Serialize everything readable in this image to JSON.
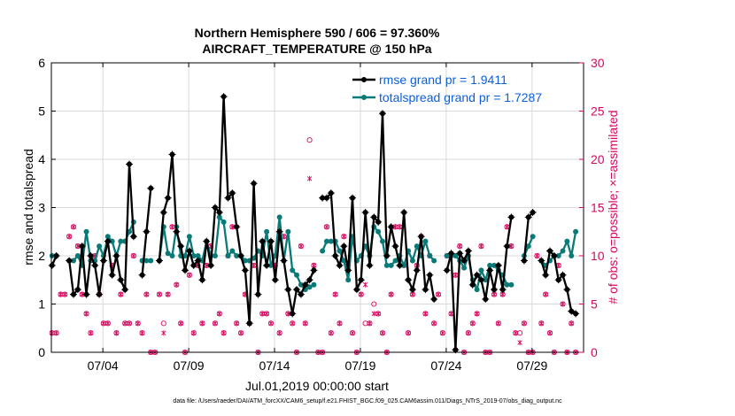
{
  "chart_data": {
    "type": "line",
    "title": "Northern Hemisphere 590 / 606 = 97.360%",
    "subtitle": "AIRCRAFT_TEMPERATURE @ 150 hPa",
    "xlabel": "Jul.01,2019 00:00:00 start",
    "ylabel": "rmse and totalspread",
    "y2label": "# of obs: o=possible; ×=assimilated",
    "footnote": "data file: /Users/raeder/DAI/ATM_forcXX/CAM6_setup/f.e21.FHIST_BGC.f09_025.CAM6assim.011/Diags_NTrS_2019-07/obs_diag_output.nc",
    "xlim": [
      1.0,
      32.0
    ],
    "xticks": [
      4,
      9,
      14,
      19,
      24,
      29
    ],
    "xticklabels": [
      "07/04",
      "07/09",
      "07/14",
      "07/19",
      "07/24",
      "07/29"
    ],
    "ylim": [
      0,
      6
    ],
    "yticks": [
      0,
      1,
      2,
      3,
      4,
      5,
      6
    ],
    "y2lim": [
      0,
      30
    ],
    "y2ticks": [
      0,
      5,
      10,
      15,
      20,
      25,
      30
    ],
    "legend": {
      "position": "top-right",
      "entries": [
        "rmse grand pr = 1.9411",
        "totalspread grand pr = 1.7287"
      ]
    },
    "colors": {
      "rmse": "#000000",
      "spread": "#0a7a78",
      "obs": "#d6095f",
      "legend_text": "#0b5fdc"
    },
    "series": [
      {
        "name": "rmse",
        "x": [
          1.04,
          1.29,
          1.54,
          2.04,
          2.29,
          2.54,
          2.79,
          3.04,
          3.29,
          3.54,
          3.79,
          4.04,
          4.29,
          4.54,
          4.79,
          5.04,
          5.29,
          5.54,
          5.79,
          6.04,
          6.29,
          6.54,
          6.79,
          7.04,
          7.29,
          7.54,
          7.79,
          8.04,
          8.29,
          8.54,
          8.79,
          9.04,
          9.29,
          9.54,
          9.79,
          10.04,
          10.29,
          10.54,
          10.79,
          11.04,
          11.29,
          11.54,
          11.79,
          12.04,
          12.29,
          12.54,
          12.79,
          13.04,
          13.29,
          13.54,
          13.79,
          14.04,
          14.29,
          14.54,
          14.79,
          15.04,
          15.29,
          15.54,
          15.79,
          16.04,
          16.29,
          16.54,
          16.79,
          17.04,
          17.29,
          17.54,
          17.79,
          18.04,
          18.29,
          18.54,
          18.79,
          19.04,
          19.29,
          19.54,
          19.79,
          20.04,
          20.29,
          20.54,
          20.79,
          21.04,
          21.29,
          21.54,
          21.79,
          22.04,
          22.29,
          22.54,
          22.79,
          23.04,
          23.29,
          23.54,
          23.79,
          24.04,
          24.29,
          24.54,
          24.79,
          25.04,
          25.29,
          25.54,
          25.79,
          26.04,
          26.29,
          26.54,
          26.79,
          27.04,
          27.29,
          27.54,
          27.79,
          28.04,
          28.29,
          28.54,
          28.79,
          29.04,
          29.29,
          29.54,
          29.79,
          30.04,
          30.29,
          30.54,
          30.79,
          31.04,
          31.29,
          31.54
        ],
        "values": [
          1.8,
          2.0,
          null,
          1.9,
          1.2,
          1.3,
          2.2,
          1.2,
          2.0,
          1.8,
          1.2,
          1.9,
          2.3,
          1.6,
          2.0,
          1.5,
          1.3,
          3.9,
          2.4,
          null,
          1.6,
          2.5,
          3.4,
          null,
          1.9,
          2.9,
          3.2,
          4.1,
          2.5,
          2.2,
          1.7,
          2.1,
          1.8,
          1.9,
          1.5,
          2.3,
          1.8,
          3.0,
          2.9,
          5.3,
          3.2,
          3.3,
          2.6,
          2.0,
          1.7,
          0.6,
          3.5,
          1.2,
          2.3,
          1.8,
          2.3,
          1.5,
          2.5,
          1.9,
          1.3,
          0.8,
          1.3,
          1.2,
          1.4,
          1.5,
          1.7,
          null,
          3.2,
          3.2,
          3.3,
          2.0,
          1.8,
          2.2,
          1.7,
          3.2,
          1.3,
          1.5,
          2.9,
          1.8,
          2.8,
          2.7,
          4.95,
          2.0,
          2.6,
          2.2,
          1.8,
          2.9,
          1.5,
          1.3,
          1.7,
          2.4,
          1.3,
          1.6,
          1.1,
          null,
          null,
          1.7,
          2.05,
          0.05,
          2.05,
          1.9,
          2.1,
          1.4,
          1.6,
          1.5,
          1.1,
          1.7,
          1.3,
          1.8,
          1.3,
          2.2,
          2.8,
          null,
          null,
          1.9,
          2.8,
          2.9,
          null,
          1.9,
          1.6,
          2.1,
          2.0,
          1.5,
          1.6,
          1.3,
          0.85,
          0.8
        ]
      },
      {
        "name": "totalspread",
        "x": [
          1.04,
          1.29,
          1.54,
          2.04,
          2.29,
          2.54,
          2.79,
          3.04,
          3.29,
          3.54,
          3.79,
          4.04,
          4.29,
          4.54,
          4.79,
          5.04,
          5.29,
          5.54,
          5.79,
          6.04,
          6.29,
          6.54,
          6.79,
          7.04,
          7.29,
          7.54,
          7.79,
          8.04,
          8.29,
          8.54,
          8.79,
          9.04,
          9.29,
          9.54,
          9.79,
          10.04,
          10.29,
          10.54,
          10.79,
          11.04,
          11.29,
          11.54,
          11.79,
          12.04,
          12.29,
          12.54,
          12.79,
          13.04,
          13.29,
          13.54,
          13.79,
          14.04,
          14.29,
          14.54,
          14.79,
          15.04,
          15.29,
          15.54,
          15.79,
          16.04,
          16.29,
          16.54,
          16.79,
          17.04,
          17.29,
          17.54,
          17.79,
          18.04,
          18.29,
          18.54,
          18.79,
          19.04,
          19.29,
          19.54,
          19.79,
          20.04,
          20.29,
          20.54,
          20.79,
          21.04,
          21.29,
          21.54,
          21.79,
          22.04,
          22.29,
          22.54,
          22.79,
          23.04,
          23.29,
          23.54,
          23.79,
          24.04,
          24.29,
          24.54,
          24.79,
          25.04,
          25.29,
          25.54,
          25.79,
          26.04,
          26.29,
          26.54,
          26.79,
          27.04,
          27.29,
          27.54,
          27.79,
          28.04,
          28.29,
          28.54,
          28.79,
          29.04,
          29.29,
          29.54,
          29.79,
          30.04,
          30.29,
          30.54,
          30.79,
          31.04,
          31.29,
          31.54
        ],
        "values": [
          2.0,
          2.0,
          null,
          1.9,
          1.9,
          2.0,
          1.8,
          2.5,
          1.9,
          1.9,
          2.2,
          2.0,
          2.4,
          2.3,
          2.0,
          2.3,
          2.3,
          2.5,
          2.7,
          null,
          1.9,
          1.9,
          1.9,
          null,
          1.9,
          2.6,
          2.05,
          2.0,
          2.6,
          2.0,
          2.0,
          2.4,
          2.0,
          2.0,
          1.9,
          2.3,
          2.0,
          2.0,
          2.8,
          2.7,
          2.0,
          2.1,
          2.0,
          2.0,
          1.9,
          1.9,
          1.95,
          2.1,
          2.0,
          2.5,
          1.8,
          2.0,
          2.8,
          1.9,
          2.5,
          1.7,
          1.6,
          1.4,
          1.3,
          1.35,
          1.4,
          null,
          2.1,
          2.3,
          2.3,
          2.3,
          2.1,
          1.9,
          1.5,
          2.4,
          1.9,
          2.0,
          2.2,
          2.0,
          2.6,
          2.5,
          2.3,
          1.8,
          1.8,
          1.9,
          2.0,
          1.8,
          2.1,
          1.9,
          2.2,
          2.0,
          2.3,
          2.0,
          1.9,
          null,
          null,
          2.0,
          2.0,
          2.0,
          1.9,
          1.75,
          2.0,
          1.5,
          1.3,
          1.7,
          1.5,
          1.8,
          1.8,
          1.7,
          1.6,
          1.4,
          1.4,
          null,
          null,
          2.0,
          2.2,
          2.4,
          null,
          1.9,
          1.8,
          1.9,
          2.0,
          2.0,
          2.1,
          2.3,
          2.0,
          2.5
        ]
      }
    ],
    "obs_possible": [
      [
        1.04,
        2
      ],
      [
        1.29,
        2
      ],
      [
        1.54,
        6
      ],
      [
        1.79,
        6
      ],
      [
        2.04,
        12
      ],
      [
        2.29,
        13
      ],
      [
        2.54,
        11
      ],
      [
        2.79,
        6
      ],
      [
        3.04,
        4
      ],
      [
        3.29,
        2
      ],
      [
        3.54,
        10
      ],
      [
        3.79,
        6
      ],
      [
        4.04,
        3
      ],
      [
        4.29,
        3
      ],
      [
        4.54,
        9
      ],
      [
        4.79,
        2
      ],
      [
        5.04,
        6
      ],
      [
        5.29,
        3
      ],
      [
        5.54,
        3
      ],
      [
        5.79,
        10
      ],
      [
        6.04,
        3
      ],
      [
        6.29,
        2
      ],
      [
        6.54,
        6
      ],
      [
        6.79,
        0
      ],
      [
        7.04,
        0
      ],
      [
        7.29,
        6
      ],
      [
        7.54,
        3
      ],
      [
        7.79,
        6
      ],
      [
        8.04,
        13
      ],
      [
        8.29,
        7
      ],
      [
        8.54,
        3
      ],
      [
        8.79,
        0
      ],
      [
        9.04,
        8
      ],
      [
        9.29,
        2
      ],
      [
        9.54,
        9
      ],
      [
        9.79,
        3
      ],
      [
        10.04,
        9
      ],
      [
        10.29,
        11
      ],
      [
        10.54,
        3
      ],
      [
        10.79,
        4
      ],
      [
        11.04,
        2
      ],
      [
        11.29,
        10
      ],
      [
        11.54,
        13
      ],
      [
        11.79,
        3
      ],
      [
        12.04,
        2
      ],
      [
        12.29,
        6
      ],
      [
        12.54,
        3
      ],
      [
        12.79,
        9
      ],
      [
        13.04,
        0
      ],
      [
        13.29,
        4
      ],
      [
        13.54,
        4
      ],
      [
        13.79,
        3
      ],
      [
        14.04,
        9
      ],
      [
        14.29,
        2
      ],
      [
        14.54,
        12
      ],
      [
        14.79,
        4
      ],
      [
        15.04,
        3
      ],
      [
        15.29,
        0
      ],
      [
        15.54,
        11
      ],
      [
        15.79,
        3
      ],
      [
        16.04,
        22
      ],
      [
        16.29,
        9
      ],
      [
        16.54,
        0
      ],
      [
        16.79,
        0
      ],
      [
        17.04,
        13
      ],
      [
        17.29,
        2
      ],
      [
        17.54,
        6
      ],
      [
        17.79,
        3
      ],
      [
        18.04,
        12
      ],
      [
        18.29,
        9
      ],
      [
        18.54,
        2
      ],
      [
        18.79,
        0
      ],
      [
        19.04,
        6
      ],
      [
        19.29,
        3
      ],
      [
        19.54,
        3
      ],
      [
        19.79,
        5
      ],
      [
        20.04,
        4
      ],
      [
        20.29,
        2
      ],
      [
        20.54,
        0
      ],
      [
        20.79,
        6
      ],
      [
        21.04,
        13
      ],
      [
        21.29,
        13
      ],
      [
        21.54,
        9
      ],
      [
        21.79,
        2
      ],
      [
        22.04,
        6
      ],
      [
        22.29,
        9
      ],
      [
        22.54,
        12
      ],
      [
        22.79,
        4
      ],
      [
        23.04,
        10
      ],
      [
        23.29,
        3
      ],
      [
        23.54,
        6
      ],
      [
        23.79,
        2
      ],
      [
        24.04,
        10
      ],
      [
        24.29,
        4
      ],
      [
        24.54,
        8
      ],
      [
        24.79,
        11
      ],
      [
        25.04,
        0
      ],
      [
        25.29,
        2
      ],
      [
        25.54,
        3
      ],
      [
        25.79,
        4
      ],
      [
        26.04,
        11
      ],
      [
        26.29,
        0
      ],
      [
        26.54,
        0
      ],
      [
        26.79,
        6
      ],
      [
        27.04,
        3
      ],
      [
        27.29,
        6
      ],
      [
        27.54,
        13
      ],
      [
        27.79,
        11
      ],
      [
        28.04,
        2
      ],
      [
        28.29,
        2
      ],
      [
        28.54,
        3
      ],
      [
        28.79,
        0
      ],
      [
        29.04,
        0
      ],
      [
        29.29,
        10
      ],
      [
        29.54,
        3
      ],
      [
        29.79,
        6
      ],
      [
        30.04,
        2
      ],
      [
        30.29,
        0
      ],
      [
        30.54,
        9
      ],
      [
        30.79,
        5
      ],
      [
        31.04,
        0
      ],
      [
        31.29,
        3
      ],
      [
        31.54,
        0
      ]
    ],
    "obs_assimilated": [
      [
        1.04,
        2
      ],
      [
        1.29,
        2
      ],
      [
        1.54,
        6
      ],
      [
        1.79,
        6
      ],
      [
        2.04,
        12
      ],
      [
        2.29,
        13
      ],
      [
        2.54,
        11
      ],
      [
        2.79,
        6
      ],
      [
        3.04,
        4
      ],
      [
        3.29,
        2
      ],
      [
        3.54,
        10
      ],
      [
        3.79,
        6
      ],
      [
        4.04,
        3
      ],
      [
        4.29,
        3
      ],
      [
        4.54,
        9
      ],
      [
        4.79,
        2
      ],
      [
        5.04,
        6
      ],
      [
        5.29,
        3
      ],
      [
        5.54,
        3
      ],
      [
        5.79,
        10
      ],
      [
        6.04,
        3
      ],
      [
        6.29,
        2
      ],
      [
        6.54,
        6
      ],
      [
        6.79,
        0
      ],
      [
        7.04,
        0
      ],
      [
        7.29,
        6
      ],
      [
        7.54,
        2
      ],
      [
        7.79,
        6
      ],
      [
        8.04,
        13
      ],
      [
        8.29,
        7
      ],
      [
        8.54,
        3
      ],
      [
        8.79,
        0
      ],
      [
        9.04,
        8
      ],
      [
        9.29,
        2
      ],
      [
        9.54,
        9
      ],
      [
        9.79,
        3
      ],
      [
        10.04,
        9
      ],
      [
        10.29,
        11
      ],
      [
        10.54,
        3
      ],
      [
        10.79,
        4
      ],
      [
        11.04,
        2
      ],
      [
        11.29,
        10
      ],
      [
        11.54,
        13
      ],
      [
        11.79,
        3
      ],
      [
        12.04,
        2
      ],
      [
        12.29,
        6
      ],
      [
        12.54,
        3
      ],
      [
        12.79,
        9
      ],
      [
        13.04,
        0
      ],
      [
        13.29,
        4
      ],
      [
        13.54,
        4
      ],
      [
        13.79,
        3
      ],
      [
        14.04,
        9
      ],
      [
        14.29,
        2
      ],
      [
        14.54,
        12
      ],
      [
        14.79,
        4
      ],
      [
        15.04,
        3
      ],
      [
        15.29,
        0
      ],
      [
        15.54,
        11
      ],
      [
        15.79,
        3
      ],
      [
        16.04,
        18
      ],
      [
        16.29,
        9
      ],
      [
        16.54,
        0
      ],
      [
        16.79,
        0
      ],
      [
        17.04,
        13
      ],
      [
        17.29,
        2
      ],
      [
        17.54,
        6
      ],
      [
        17.79,
        3
      ],
      [
        18.04,
        12
      ],
      [
        18.29,
        9
      ],
      [
        18.54,
        2
      ],
      [
        18.79,
        0
      ],
      [
        19.04,
        6
      ],
      [
        19.29,
        7
      ],
      [
        19.54,
        3
      ],
      [
        19.79,
        4
      ],
      [
        20.04,
        4
      ],
      [
        20.29,
        2
      ],
      [
        20.54,
        0
      ],
      [
        20.79,
        6
      ],
      [
        21.04,
        13
      ],
      [
        21.29,
        13
      ],
      [
        21.54,
        9
      ],
      [
        21.79,
        2
      ],
      [
        22.04,
        6
      ],
      [
        22.29,
        9
      ],
      [
        22.54,
        12
      ],
      [
        22.79,
        4
      ],
      [
        23.04,
        10
      ],
      [
        23.29,
        3
      ],
      [
        23.54,
        6
      ],
      [
        23.79,
        2
      ],
      [
        24.04,
        10
      ],
      [
        24.29,
        4
      ],
      [
        24.54,
        8
      ],
      [
        24.79,
        11
      ],
      [
        25.04,
        0
      ],
      [
        25.29,
        2
      ],
      [
        25.54,
        3
      ],
      [
        25.79,
        4
      ],
      [
        26.04,
        11
      ],
      [
        26.29,
        0
      ],
      [
        26.54,
        0
      ],
      [
        26.79,
        6
      ],
      [
        27.04,
        3
      ],
      [
        27.29,
        6
      ],
      [
        27.54,
        13
      ],
      [
        27.79,
        11
      ],
      [
        28.04,
        2
      ],
      [
        28.29,
        1
      ],
      [
        28.54,
        3
      ],
      [
        28.79,
        0
      ],
      [
        29.04,
        0
      ],
      [
        29.29,
        10
      ],
      [
        29.54,
        3
      ],
      [
        29.79,
        6
      ],
      [
        30.04,
        2
      ],
      [
        30.29,
        0
      ],
      [
        30.54,
        9
      ],
      [
        30.79,
        5
      ],
      [
        31.04,
        0
      ],
      [
        31.29,
        3
      ],
      [
        31.54,
        0
      ]
    ]
  }
}
